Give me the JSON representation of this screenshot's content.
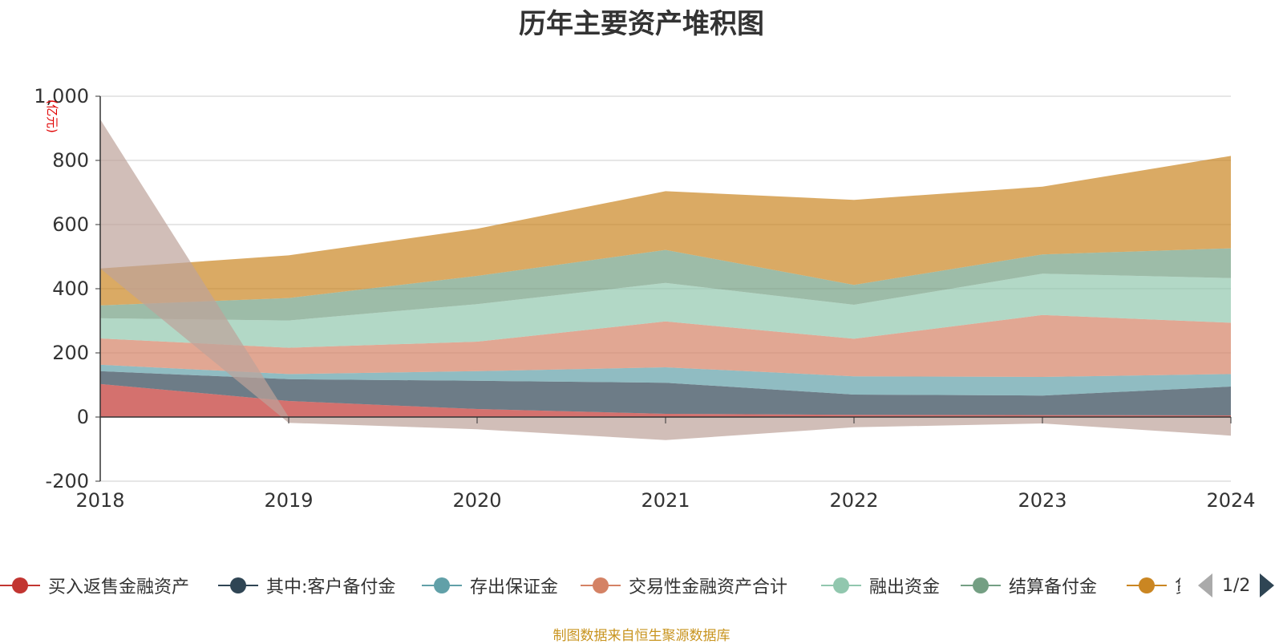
{
  "title": "历年主要资产堆积图",
  "source_note": "制图数据来自恒生聚源数据库",
  "legend_page": "1/2",
  "legend_partial_label": "贷",
  "chart_data": {
    "type": "area",
    "stacked": true,
    "title": "历年主要资产堆积图",
    "ylabel": "(亿元)",
    "x": [
      "2018",
      "2019",
      "2020",
      "2021",
      "2022",
      "2023",
      "2024"
    ],
    "ylim": [
      -200,
      1000
    ],
    "yticks": [
      -200,
      0,
      200,
      400,
      600,
      800,
      "1,000"
    ],
    "grid": true,
    "legend_position": "bottom",
    "series": [
      {
        "name": "买入返售金融资产",
        "color": "#c23531",
        "values": [
          103,
          50,
          25,
          10,
          7,
          6,
          5
        ]
      },
      {
        "name": "其中:客户备付金",
        "color": "#2f4554",
        "values": [
          40,
          68,
          88,
          97,
          63,
          61,
          90
        ]
      },
      {
        "name": "存出保证金",
        "color": "#61a0a8",
        "values": [
          20,
          16,
          30,
          48,
          57,
          58,
          39
        ]
      },
      {
        "name": "交易性金融资产合计",
        "color": "#d48265",
        "values": [
          82,
          82,
          92,
          143,
          117,
          193,
          160
        ]
      },
      {
        "name": "融出资金",
        "color": "#91c7ae",
        "values": [
          63,
          85,
          117,
          120,
          106,
          129,
          139
        ]
      },
      {
        "name": "结算备付金",
        "color": "#749f83",
        "values": [
          40,
          70,
          88,
          103,
          62,
          60,
          93
        ]
      },
      {
        "name": "贷",
        "color": "#ca8622",
        "values": [
          115,
          133,
          147,
          183,
          265,
          211,
          288
        ]
      },
      {
        "name": "",
        "color": "#bda29a",
        "values": [
          465,
          -18,
          -38,
          -72,
          -32,
          -20,
          -58
        ]
      }
    ]
  }
}
